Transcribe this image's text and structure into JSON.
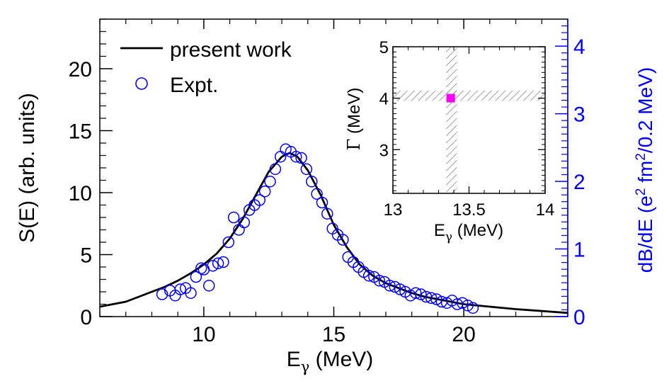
{
  "chart_data": {
    "type": "line",
    "title": "",
    "xlabel": {
      "main": "E",
      "sub": "γ",
      "unit": " (MeV)"
    },
    "ylabel": "S(E) (arb. units)",
    "y2label": {
      "pre": "dB/dE (e",
      "sup": "2",
      "mid": " fm",
      "post": "/0.2 MeV)"
    },
    "xlim": [
      6,
      24
    ],
    "ylim": [
      0,
      24
    ],
    "y2lim": [
      0,
      4.4
    ],
    "x_ticks": [
      10,
      15,
      20
    ],
    "y_ticks": [
      0,
      5,
      10,
      15,
      20
    ],
    "y2_ticks": [
      0,
      1,
      2,
      3,
      4
    ],
    "x_tick_labels": [
      "10",
      "15",
      "20"
    ],
    "y_tick_labels": [
      "0",
      "5",
      "10",
      "15",
      "20"
    ],
    "y2_tick_labels": [
      "0",
      "1",
      "2",
      "3",
      "4"
    ],
    "legend": {
      "position": "top-left",
      "entries": [
        {
          "label": "present work",
          "marker": "line",
          "color": "#000000"
        },
        {
          "label": "Expt.",
          "marker": "open-circle",
          "color": "#0000ff"
        }
      ]
    },
    "colors": {
      "theory": "#000000",
      "expt": "#0000ff",
      "secondary_axis": "#0000ff",
      "inset_marker": "#ff00ff",
      "hatch": "#888888"
    },
    "series": [
      {
        "name": "present work",
        "style": "line",
        "x": [
          6.0,
          6.5,
          7.0,
          7.5,
          8.0,
          8.5,
          9.0,
          9.5,
          10.0,
          10.5,
          11.0,
          11.5,
          12.0,
          12.5,
          13.0,
          13.3,
          13.6,
          14.0,
          14.5,
          15.0,
          15.5,
          16.0,
          16.5,
          17.0,
          17.5,
          18.0,
          18.5,
          19.0,
          19.5,
          20.0,
          21.0,
          22.0,
          23.0,
          24.0
        ],
        "y": [
          0.8,
          1.0,
          1.2,
          1.6,
          2.0,
          2.4,
          2.9,
          3.5,
          4.2,
          5.1,
          6.3,
          7.9,
          9.8,
          11.7,
          12.9,
          13.2,
          12.9,
          11.8,
          9.8,
          7.4,
          5.6,
          4.2,
          3.3,
          2.7,
          2.3,
          1.9,
          1.6,
          1.4,
          1.2,
          1.0,
          0.8,
          0.6,
          0.45,
          0.3
        ]
      },
      {
        "name": "Expt.",
        "style": "open-circle",
        "x": [
          8.4,
          8.7,
          8.9,
          9.1,
          9.3,
          9.5,
          9.7,
          9.9,
          10.0,
          10.2,
          10.35,
          10.55,
          10.75,
          10.95,
          11.15,
          11.35,
          11.55,
          11.75,
          11.95,
          12.15,
          12.35,
          12.55,
          12.75,
          12.95,
          13.15,
          13.35,
          13.55,
          13.75,
          13.95,
          14.15,
          14.35,
          14.55,
          14.75,
          14.95,
          15.15,
          15.35,
          15.55,
          15.75,
          15.95,
          16.15,
          16.35,
          16.55,
          16.75,
          16.95,
          17.15,
          17.35,
          17.55,
          17.75,
          17.95,
          18.15,
          18.35,
          18.55,
          18.75,
          18.95,
          19.15,
          19.35,
          19.55,
          19.75,
          19.95,
          20.15,
          20.35
        ],
        "y": [
          1.8,
          2.1,
          1.7,
          2.2,
          2.3,
          1.9,
          3.2,
          3.9,
          3.8,
          2.5,
          4.1,
          4.3,
          4.4,
          6.0,
          8.0,
          7.0,
          7.6,
          8.6,
          9.0,
          9.4,
          10.1,
          10.9,
          11.9,
          12.9,
          13.5,
          13.3,
          12.9,
          12.8,
          11.9,
          10.9,
          9.9,
          9.2,
          8.3,
          7.1,
          6.6,
          6.2,
          4.8,
          4.4,
          4.0,
          3.6,
          3.3,
          3.2,
          2.9,
          2.8,
          2.5,
          2.4,
          2.2,
          2.0,
          1.7,
          1.9,
          1.8,
          1.6,
          1.5,
          1.4,
          1.2,
          1.1,
          1.3,
          1.0,
          1.1,
          0.9,
          0.7
        ]
      }
    ],
    "inset": {
      "xlabel": {
        "main": "E",
        "sub": "γ",
        "unit": " (MeV)"
      },
      "ylabel": {
        "greek": "Γ",
        "unit": " (MeV)"
      },
      "xlim": [
        13,
        14
      ],
      "ylim": [
        2.15,
        5
      ],
      "x_ticks": [
        13,
        13.5,
        14
      ],
      "y_ticks": [
        3,
        4,
        5
      ],
      "x_tick_labels": [
        "13",
        "13.5",
        "14"
      ],
      "y_tick_labels": [
        "3",
        "4",
        "5"
      ],
      "point": {
        "x": 13.38,
        "y": 4.0
      },
      "x_band": [
        13.35,
        13.42
      ],
      "y_band": [
        3.95,
        4.15
      ]
    }
  }
}
